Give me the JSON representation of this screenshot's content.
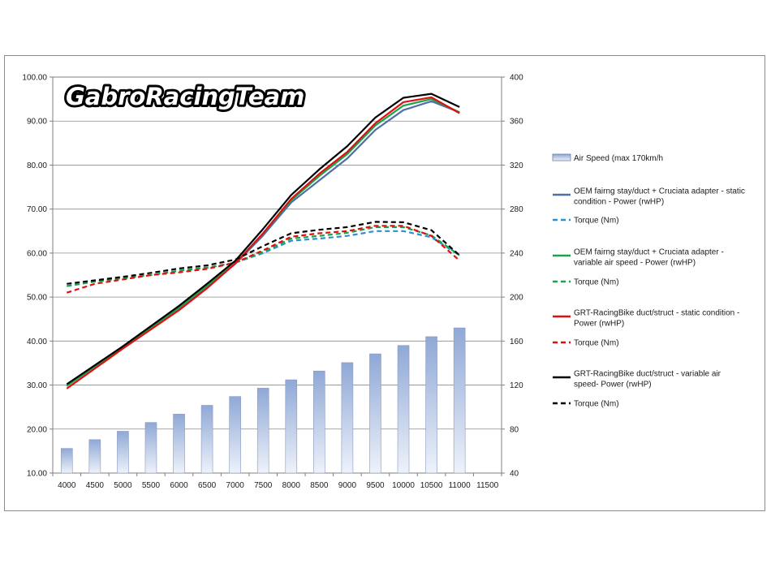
{
  "logo_text": "GabroRacingTeam",
  "chart_data": {
    "type": "bar+line",
    "title": "",
    "xlabel": "",
    "ylabel": "",
    "categories": [
      "4000",
      "4500",
      "5000",
      "5500",
      "6000",
      "6500",
      "7000",
      "7500",
      "8000",
      "8500",
      "9000",
      "9500",
      "10000",
      "10500",
      "11000",
      "11500"
    ],
    "ylim_left": [
      10,
      100
    ],
    "ylim_right": [
      40,
      400
    ],
    "left_ticks": [
      "10.00",
      "20.00",
      "30.00",
      "40.00",
      "50.00",
      "60.00",
      "70.00",
      "80.00",
      "90.00",
      "100.00"
    ],
    "right_ticks": [
      "40",
      "80",
      "120",
      "160",
      "200",
      "240",
      "280",
      "320",
      "360",
      "400"
    ],
    "grid": "horizontal",
    "legend_position": "right",
    "bars": {
      "name": "Air Speed (max 170km/h",
      "axis": "left",
      "color": "#8fa8d6",
      "values": [
        15.6,
        17.6,
        19.5,
        21.5,
        23.4,
        25.4,
        27.4,
        29.3,
        31.2,
        33.2,
        35.1,
        37.1,
        39.0,
        41.0,
        43.0,
        null
      ]
    },
    "series": [
      {
        "name": "OEM fairng stay/duct + Cruciata adapter - static condition - Power (rwHP)",
        "axis": "left",
        "color": "#4f6fa8",
        "dash": false,
        "x": [
          4000,
          5000,
          6000,
          6500,
          7000,
          7500,
          8000,
          8500,
          9000,
          9500,
          10000,
          10500,
          11000
        ],
        "values": [
          29.8,
          38.6,
          47.5,
          52.5,
          57.5,
          64.0,
          71.5,
          76.5,
          81.5,
          88.0,
          92.5,
          94.5,
          92.0
        ]
      },
      {
        "name": "Torque (Nm)",
        "axis": "left",
        "color": "#2e8fd0",
        "dash": true,
        "x": [
          4000,
          4500,
          5000,
          5500,
          6000,
          6500,
          7000,
          7500,
          8000,
          8500,
          9000,
          9500,
          10000,
          10500,
          11000
        ],
        "values": [
          52.5,
          53.6,
          54.3,
          55.0,
          56.0,
          56.7,
          57.8,
          60.0,
          62.8,
          63.3,
          63.9,
          65.0,
          65.0,
          63.6,
          59.5
        ]
      },
      {
        "name": "OEM fairng stay/duct + Cruciata adapter - variable air speed - Power (rwHP)",
        "axis": "left",
        "color": "#1aa34a",
        "dash": false,
        "x": [
          4000,
          5000,
          6000,
          6500,
          7000,
          7500,
          8000,
          8500,
          9000,
          9500,
          10000,
          10500,
          11000
        ],
        "values": [
          29.8,
          38.6,
          47.6,
          52.6,
          57.6,
          64.5,
          72.0,
          77.5,
          82.5,
          89.0,
          93.5,
          95.0,
          92.0
        ]
      },
      {
        "name": "Torque (Nm)",
        "axis": "left",
        "color": "#1aa34a",
        "dash": true,
        "x": [
          4000,
          4500,
          5000,
          5500,
          6000,
          6500,
          7000,
          7500,
          8000,
          8500,
          9000,
          9500,
          10000,
          10500,
          11000
        ],
        "values": [
          52.5,
          53.5,
          54.3,
          55.0,
          56.0,
          56.7,
          57.8,
          60.3,
          63.3,
          63.9,
          64.6,
          65.9,
          65.9,
          64.0,
          59.5
        ]
      },
      {
        "name": "GRT-RacingBike duct/struct - static condition - Power (rwHP)",
        "axis": "left",
        "color": "#e01010",
        "dash": false,
        "x": [
          4000,
          5000,
          6000,
          6500,
          7000,
          7500,
          8000,
          8500,
          9000,
          9500,
          10000,
          10500,
          11000
        ],
        "values": [
          29.2,
          38.3,
          47.0,
          52.0,
          57.6,
          64.5,
          72.3,
          78.0,
          83.0,
          89.5,
          94.3,
          95.4,
          91.8
        ]
      },
      {
        "name": "Torque (Nm)",
        "axis": "left",
        "color": "#e01010",
        "dash": true,
        "x": [
          4000,
          4500,
          5000,
          5500,
          6000,
          6500,
          7000,
          7500,
          8000,
          8500,
          9000,
          9500,
          10000,
          10500,
          11000
        ],
        "values": [
          51.0,
          53.0,
          54.0,
          55.0,
          55.6,
          56.4,
          57.8,
          60.6,
          63.7,
          64.5,
          65.0,
          66.2,
          66.2,
          63.9,
          58.3
        ]
      },
      {
        "name": "GRT-RacingBike duct/struct  - variable air speed- Power (rwHP)",
        "axis": "left",
        "color": "#000000",
        "dash": false,
        "x": [
          4000,
          5000,
          6000,
          6500,
          7000,
          7500,
          8000,
          8500,
          9000,
          9500,
          10000,
          10500,
          11000
        ],
        "values": [
          30.2,
          38.8,
          48.0,
          53.0,
          58.2,
          65.5,
          73.2,
          79.0,
          84.3,
          90.8,
          95.3,
          96.2,
          93.2
        ]
      },
      {
        "name": "Torque (Nm)",
        "axis": "left",
        "color": "#000000",
        "dash": true,
        "x": [
          4000,
          4500,
          5000,
          5500,
          6000,
          6500,
          7000,
          7500,
          8000,
          8500,
          9000,
          9500,
          10000,
          10500,
          11000
        ],
        "values": [
          53.0,
          53.8,
          54.6,
          55.5,
          56.5,
          57.2,
          58.5,
          61.6,
          64.5,
          65.3,
          65.9,
          67.1,
          67.0,
          65.2,
          59.5
        ]
      }
    ]
  }
}
